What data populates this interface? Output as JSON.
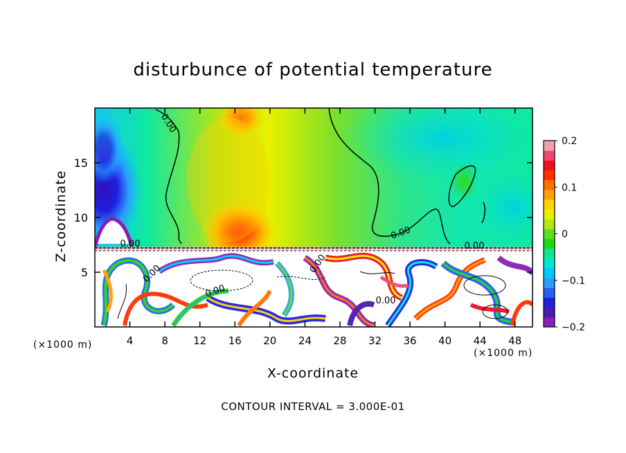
{
  "chart_data": {
    "type": "heatmap",
    "title": "disturbunce of potential temperature",
    "xlabel": "X-coordinate",
    "ylabel": "Z-coordinate",
    "x_unit": "(×1000 m)",
    "x_ticks": [
      "4",
      "8",
      "12",
      "16",
      "20",
      "24",
      "28",
      "32",
      "36",
      "40",
      "44",
      "48"
    ],
    "y_ticks": [
      "5",
      "10",
      "15"
    ],
    "xlim": [
      0,
      50
    ],
    "ylim": [
      0,
      20
    ],
    "colorbar": {
      "range": [
        -0.2,
        0.2
      ],
      "tick_labels": [
        "0.2",
        "0.1",
        "0",
        "−0.1",
        "−0.2"
      ],
      "tick_values": [
        0.2,
        0.1,
        0,
        -0.1,
        -0.2
      ],
      "colors": [
        "#8a1fb6",
        "#4b1bb0",
        "#1f1fe0",
        "#2262f0",
        "#2e9bff",
        "#00c8ff",
        "#00e6d2",
        "#10e890",
        "#22d814",
        "#5ae01e",
        "#b4e614",
        "#e8f000",
        "#ffd200",
        "#ffa000",
        "#ff7000",
        "#ff3000",
        "#ee1020",
        "#f04870",
        "#f4a0b0"
      ]
    },
    "contour_labels": [
      "0.00",
      "0.00",
      "0.00",
      "0.00",
      "0.00",
      "0.00",
      "0.00",
      "0.00"
    ],
    "footer": "CONTOUR INTERVAL = 3.000E-01"
  }
}
